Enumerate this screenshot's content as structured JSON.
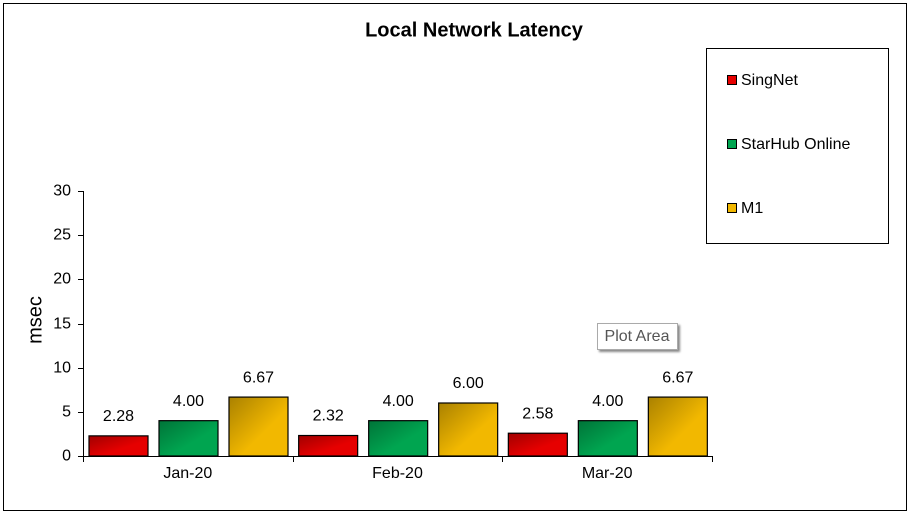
{
  "chart_data": {
    "type": "bar",
    "title": "Local Network Latency",
    "y_label": "msec",
    "categories": [
      "Jan-20",
      "Feb-20",
      "Mar-20"
    ],
    "series": [
      {
        "name": "SingNet",
        "color": "#e60000",
        "values": [
          2.28,
          2.32,
          2.58
        ],
        "value_labels": [
          "2.28",
          "2.32",
          "2.58"
        ]
      },
      {
        "name": "StarHub Online",
        "color": "#00a550",
        "values": [
          4,
          4,
          4
        ],
        "value_labels": [
          "4.00",
          "4.00",
          "4.00"
        ]
      },
      {
        "name": "M1",
        "color": "#f2b800",
        "values": [
          6.67,
          6,
          6.67
        ],
        "value_labels": [
          "6.67",
          "6.00",
          "6.67"
        ]
      }
    ],
    "ylim": [
      0,
      30
    ],
    "yticks": [
      0,
      5,
      10,
      15,
      20,
      25,
      30
    ],
    "grid": false,
    "legend": "right",
    "annotation": "Plot Area"
  }
}
